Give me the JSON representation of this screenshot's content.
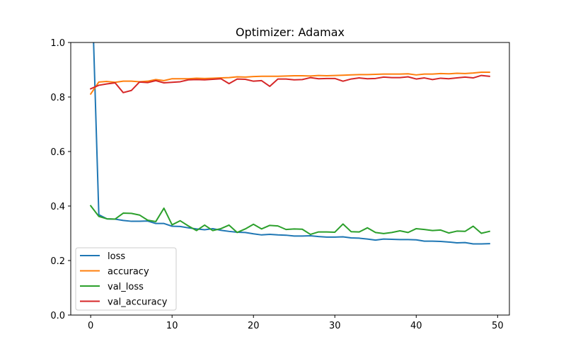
{
  "chart_data": {
    "type": "line",
    "title": "Optimizer: Adamax",
    "xlabel": "",
    "ylabel": "",
    "xlim": [
      -2.45,
      51.45
    ],
    "ylim": [
      0.0,
      1.0
    ],
    "xticks": [
      0,
      10,
      20,
      30,
      40,
      50
    ],
    "yticks": [
      0.0,
      0.2,
      0.4,
      0.6,
      0.8,
      1.0
    ],
    "xtick_labels": [
      "0",
      "10",
      "20",
      "30",
      "40",
      "50"
    ],
    "ytick_labels": [
      "0.0",
      "0.2",
      "0.4",
      "0.6",
      "0.8",
      "1.0"
    ],
    "grid": false,
    "legend_position": "lower-left",
    "x": [
      0,
      1,
      2,
      3,
      4,
      5,
      6,
      7,
      8,
      9,
      10,
      11,
      12,
      13,
      14,
      15,
      16,
      17,
      18,
      19,
      20,
      21,
      22,
      23,
      24,
      25,
      26,
      27,
      28,
      29,
      30,
      31,
      32,
      33,
      34,
      35,
      36,
      37,
      38,
      39,
      40,
      41,
      42,
      43,
      44,
      45,
      46,
      47,
      48,
      49
    ],
    "series": [
      {
        "name": "loss",
        "color": "#1f77b4",
        "values": [
          1.35,
          0.368,
          0.353,
          0.352,
          0.347,
          0.344,
          0.344,
          0.345,
          0.336,
          0.336,
          0.326,
          0.325,
          0.32,
          0.316,
          0.313,
          0.317,
          0.311,
          0.307,
          0.304,
          0.303,
          0.298,
          0.294,
          0.296,
          0.294,
          0.293,
          0.29,
          0.29,
          0.291,
          0.288,
          0.286,
          0.286,
          0.287,
          0.283,
          0.282,
          0.279,
          0.275,
          0.279,
          0.278,
          0.277,
          0.277,
          0.276,
          0.271,
          0.271,
          0.27,
          0.268,
          0.265,
          0.266,
          0.261,
          0.261,
          0.262
        ]
      },
      {
        "name": "accuracy",
        "color": "#ff7f0e",
        "values": [
          0.811,
          0.855,
          0.857,
          0.854,
          0.858,
          0.858,
          0.856,
          0.858,
          0.864,
          0.86,
          0.867,
          0.867,
          0.867,
          0.869,
          0.868,
          0.869,
          0.87,
          0.871,
          0.874,
          0.873,
          0.875,
          0.876,
          0.876,
          0.876,
          0.877,
          0.878,
          0.878,
          0.877,
          0.879,
          0.878,
          0.879,
          0.88,
          0.881,
          0.882,
          0.882,
          0.883,
          0.884,
          0.884,
          0.884,
          0.885,
          0.881,
          0.884,
          0.884,
          0.886,
          0.885,
          0.887,
          0.886,
          0.888,
          0.891,
          0.891
        ]
      },
      {
        "name": "val_loss",
        "color": "#2ca02c",
        "values": [
          0.401,
          0.362,
          0.353,
          0.352,
          0.374,
          0.373,
          0.367,
          0.348,
          0.343,
          0.392,
          0.331,
          0.346,
          0.327,
          0.31,
          0.33,
          0.31,
          0.317,
          0.33,
          0.303,
          0.316,
          0.333,
          0.316,
          0.329,
          0.327,
          0.314,
          0.316,
          0.315,
          0.296,
          0.305,
          0.305,
          0.304,
          0.334,
          0.306,
          0.305,
          0.32,
          0.303,
          0.299,
          0.303,
          0.309,
          0.303,
          0.317,
          0.314,
          0.31,
          0.312,
          0.301,
          0.308,
          0.307,
          0.326,
          0.3,
          0.307
        ]
      },
      {
        "name": "val_accuracy",
        "color": "#d62728",
        "values": [
          0.83,
          0.843,
          0.848,
          0.852,
          0.816,
          0.824,
          0.855,
          0.853,
          0.86,
          0.852,
          0.854,
          0.856,
          0.863,
          0.864,
          0.863,
          0.865,
          0.867,
          0.849,
          0.866,
          0.865,
          0.858,
          0.86,
          0.839,
          0.866,
          0.866,
          0.863,
          0.864,
          0.871,
          0.867,
          0.868,
          0.868,
          0.858,
          0.866,
          0.87,
          0.867,
          0.868,
          0.873,
          0.871,
          0.871,
          0.874,
          0.866,
          0.87,
          0.864,
          0.869,
          0.867,
          0.87,
          0.873,
          0.87,
          0.879,
          0.876
        ]
      }
    ]
  }
}
